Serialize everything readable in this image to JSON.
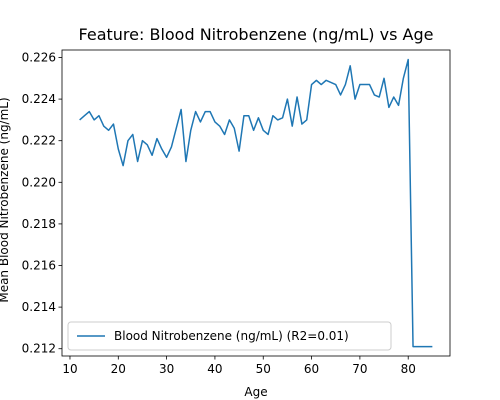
{
  "chart_data": {
    "type": "line",
    "title": "Feature: Blood Nitrobenzene (ng/mL) vs Age",
    "xlabel": "Age",
    "ylabel": "Mean Blood Nitrobenzene (ng/mL)",
    "xlim": [
      8.35,
      88.65
    ],
    "ylim": [
      0.21165,
      0.22636
    ],
    "xticks": [
      10,
      20,
      30,
      40,
      50,
      60,
      70,
      80
    ],
    "yticks": [
      0.212,
      0.214,
      0.216,
      0.218,
      0.22,
      0.222,
      0.224,
      0.226
    ],
    "ytick_labels": [
      "0.212",
      "0.214",
      "0.216",
      "0.218",
      "0.220",
      "0.222",
      "0.224",
      "0.226"
    ],
    "grid": false,
    "legend_position": "lower-left",
    "series": [
      {
        "name": "Blood Nitrobenzene (ng/mL) (R2=0.01)",
        "color": "#1f77b4",
        "x": [
          12,
          13,
          14,
          15,
          16,
          17,
          18,
          19,
          20,
          21,
          22,
          23,
          24,
          25,
          26,
          27,
          28,
          29,
          30,
          31,
          32,
          33,
          34,
          35,
          36,
          37,
          38,
          39,
          40,
          41,
          42,
          43,
          44,
          45,
          46,
          47,
          48,
          49,
          50,
          51,
          52,
          53,
          54,
          55,
          56,
          57,
          58,
          59,
          60,
          61,
          62,
          63,
          64,
          65,
          66,
          67,
          68,
          69,
          70,
          71,
          72,
          73,
          74,
          75,
          76,
          77,
          78,
          79,
          80,
          81,
          82,
          83,
          84,
          85
        ],
        "y": [
          0.223,
          0.2232,
          0.2234,
          0.223,
          0.2232,
          0.2227,
          0.2225,
          0.2228,
          0.2216,
          0.2208,
          0.222,
          0.2223,
          0.221,
          0.222,
          0.2218,
          0.2213,
          0.2221,
          0.2216,
          0.2212,
          0.2217,
          0.2226,
          0.2235,
          0.221,
          0.2225,
          0.2234,
          0.2229,
          0.2234,
          0.2234,
          0.2229,
          0.2227,
          0.2223,
          0.223,
          0.2226,
          0.2215,
          0.2232,
          0.2232,
          0.2225,
          0.2231,
          0.2225,
          0.2223,
          0.2232,
          0.223,
          0.2231,
          0.224,
          0.2227,
          0.2241,
          0.2228,
          0.223,
          0.2247,
          0.2249,
          0.2247,
          0.2249,
          0.2248,
          0.2247,
          0.2242,
          0.2247,
          0.2256,
          0.224,
          0.2247,
          0.2247,
          0.2247,
          0.2242,
          0.2241,
          0.225,
          0.2236,
          0.2241,
          0.2237,
          0.225,
          0.2259,
          0.2121,
          0.2121,
          0.2121,
          0.2121,
          0.2121
        ]
      }
    ]
  }
}
